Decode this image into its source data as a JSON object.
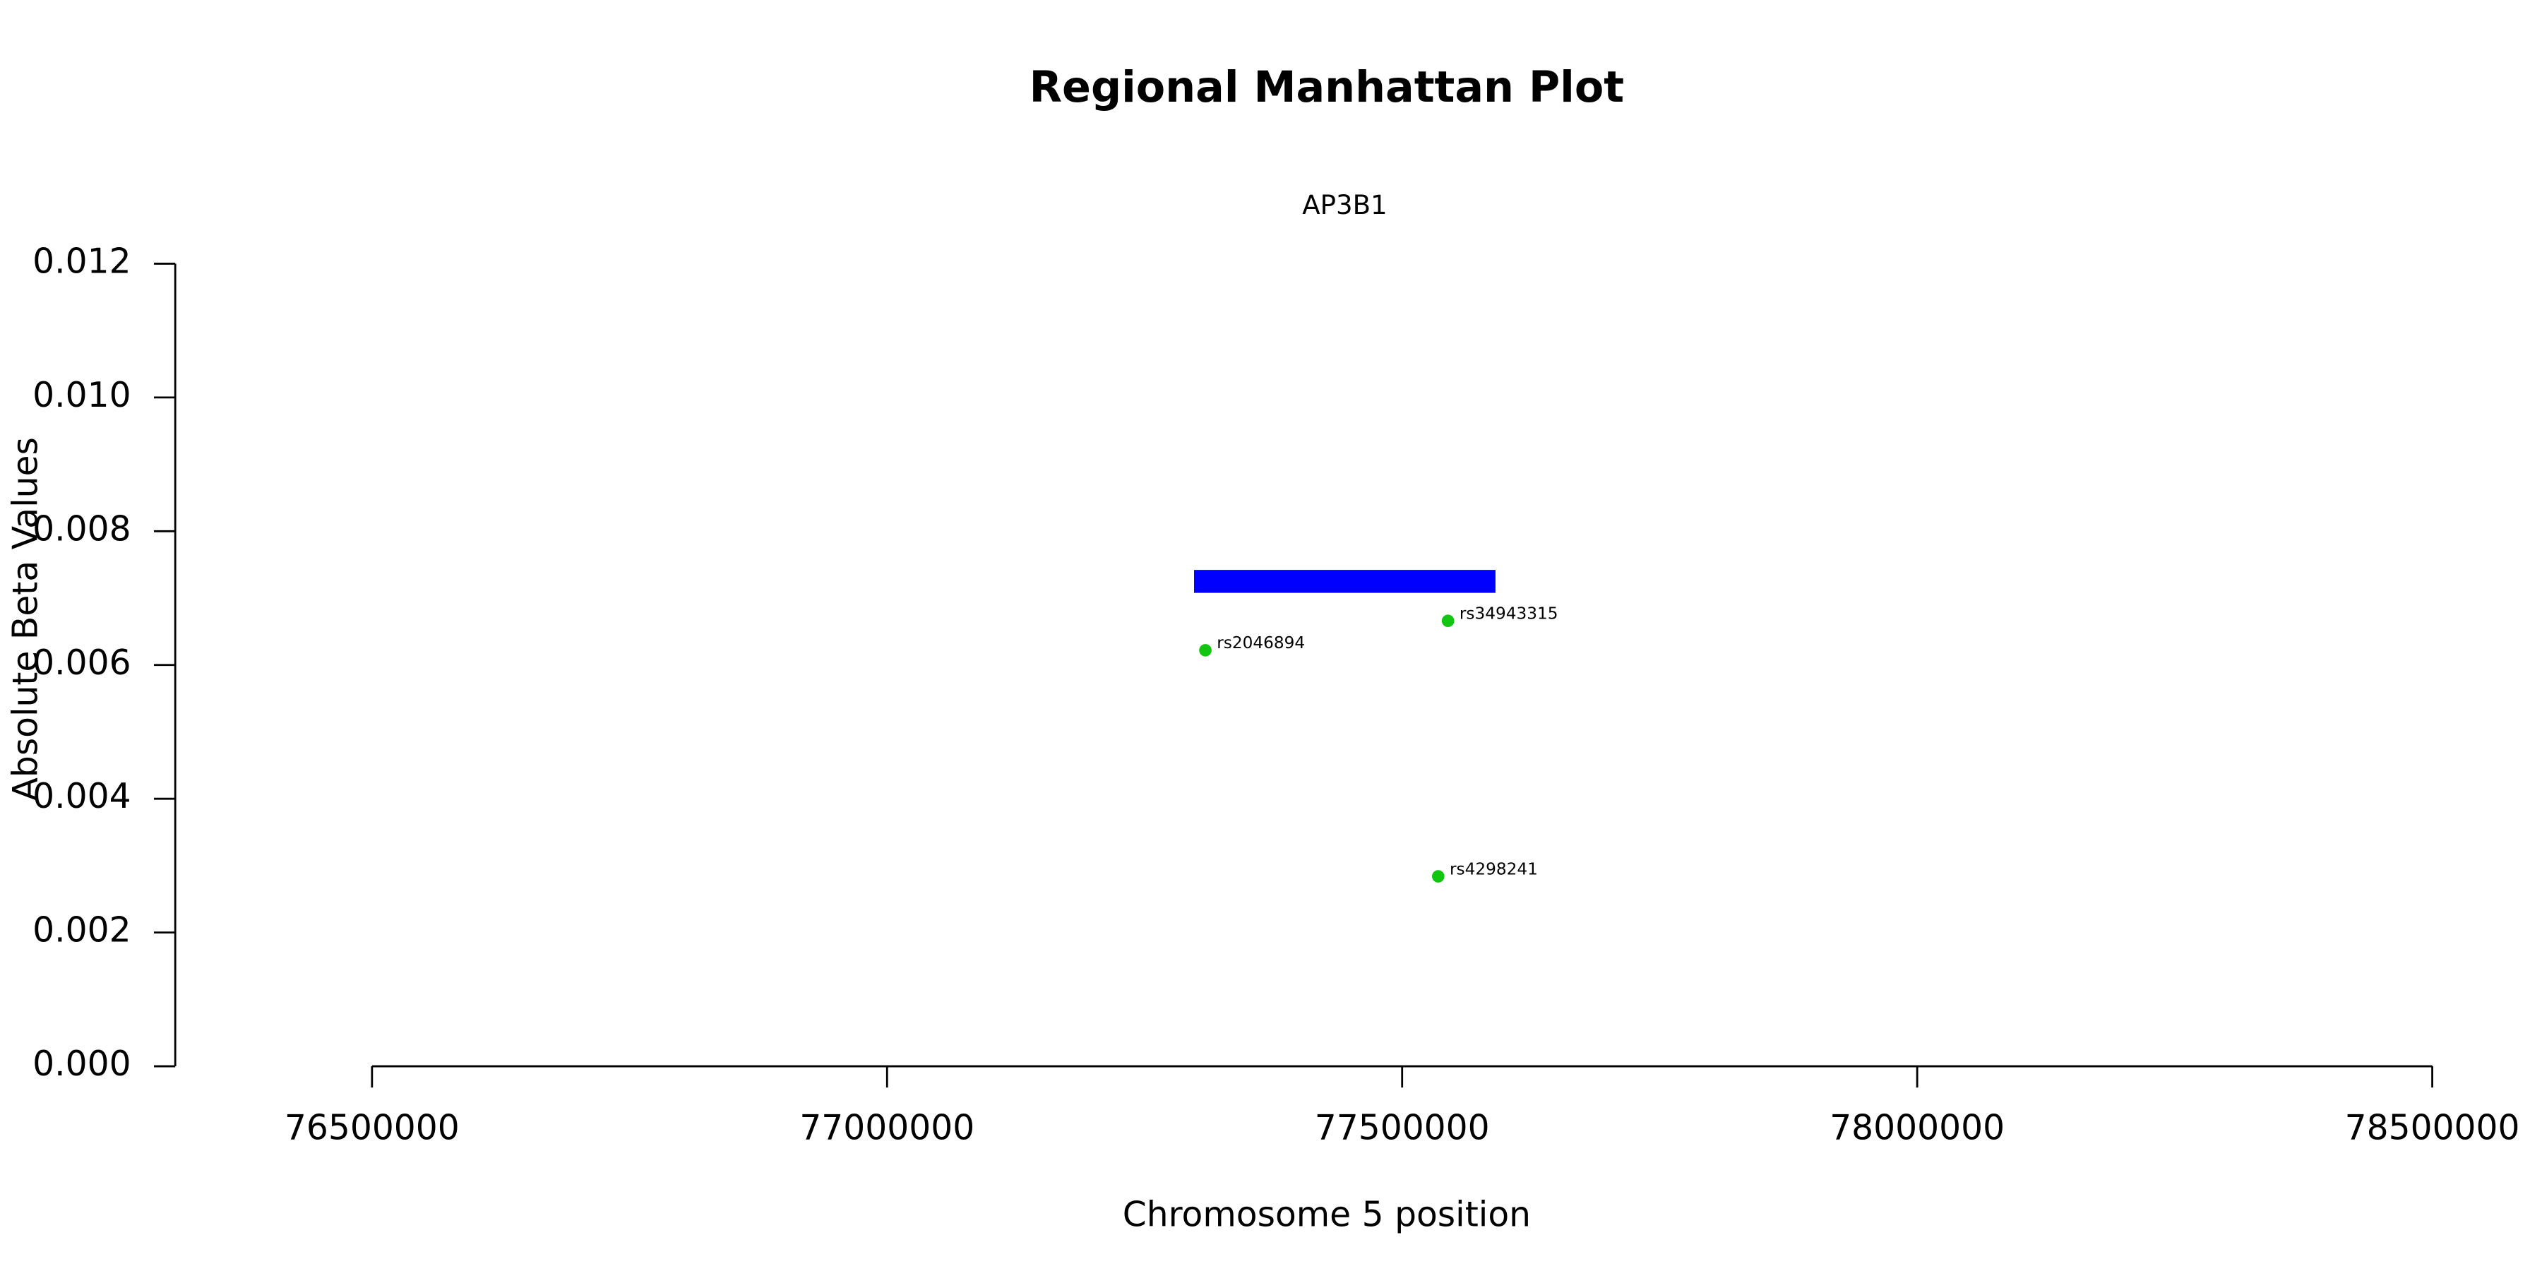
{
  "chart_data": {
    "type": "scatter",
    "title": "Regional Manhattan Plot",
    "xlabel": "Chromosome 5 position",
    "ylabel": "Absolute Beta Values",
    "xlim": [
      76309000,
      78500000
    ],
    "ylim": [
      0,
      0.012
    ],
    "xticks": [
      76500000,
      77000000,
      77500000,
      78000000,
      78500000
    ],
    "yticks": [
      {
        "value": 0,
        "label": "0.000"
      },
      0.002,
      0.004,
      0.006,
      0.008,
      {
        "value": 0.01,
        "label": "0.010"
      },
      0.012
    ],
    "gene": {
      "name": "AP3B1",
      "start": 77298000,
      "end": 77590600,
      "y": 0.00725,
      "color": "#0000ff"
    },
    "series": [
      {
        "color": "#11c511",
        "labels": [
          "rs2046894",
          "rs34943315",
          "rs4298241"
        ],
        "x": [
          77309000,
          77544500,
          77535000
        ],
        "values": [
          0.00622,
          0.00666,
          0.00284
        ]
      }
    ]
  }
}
